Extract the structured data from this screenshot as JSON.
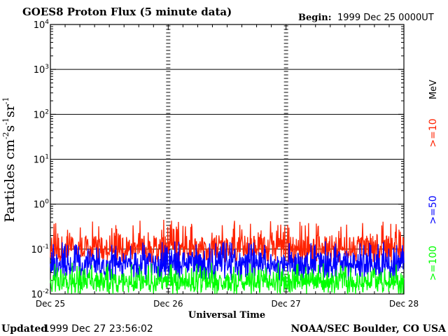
{
  "header": {
    "title": "GOES8 Proton Flux (5 minute data)",
    "begin_label": "Begin:",
    "begin_value": "1999 Dec 25 0000UT"
  },
  "footer": {
    "updated_label": "Updated",
    "updated_value": "1999 Dec 27 23:56:02",
    "credit": "NOAA/SEC Boulder, CO USA"
  },
  "chart_data": {
    "type": "line",
    "title": "GOES8 Proton Flux (5 minute data)",
    "xlabel": "Universal Time",
    "ylabel": "Particles cm-2 s-1 sr-1",
    "yscale": "log",
    "ylim": [
      0.01,
      10000
    ],
    "y_ticks": [
      {
        "base": "10",
        "exp": "-2"
      },
      {
        "base": "10",
        "exp": "-1"
      },
      {
        "base": "10",
        "exp": "0"
      },
      {
        "base": "10",
        "exp": "1"
      },
      {
        "base": "10",
        "exp": "2"
      },
      {
        "base": "10",
        "exp": "3"
      },
      {
        "base": "10",
        "exp": "4"
      }
    ],
    "x_ticks": [
      "Dec 25",
      "Dec 26",
      "Dec 27",
      "Dec 28"
    ],
    "xlim_days": [
      0,
      3
    ],
    "grid": true,
    "units_label": "MeV",
    "series": [
      {
        "name": ">=10",
        "color": "#ff2200",
        "typical_value": 0.12,
        "min": 0.05,
        "max": 0.45
      },
      {
        "name": ">=50",
        "color": "#0000ff",
        "typical_value": 0.05,
        "min": 0.02,
        "max": 0.15
      },
      {
        "name": ">=100",
        "color": "#00ff00",
        "typical_value": 0.02,
        "min": 0.01,
        "max": 0.05
      }
    ]
  }
}
